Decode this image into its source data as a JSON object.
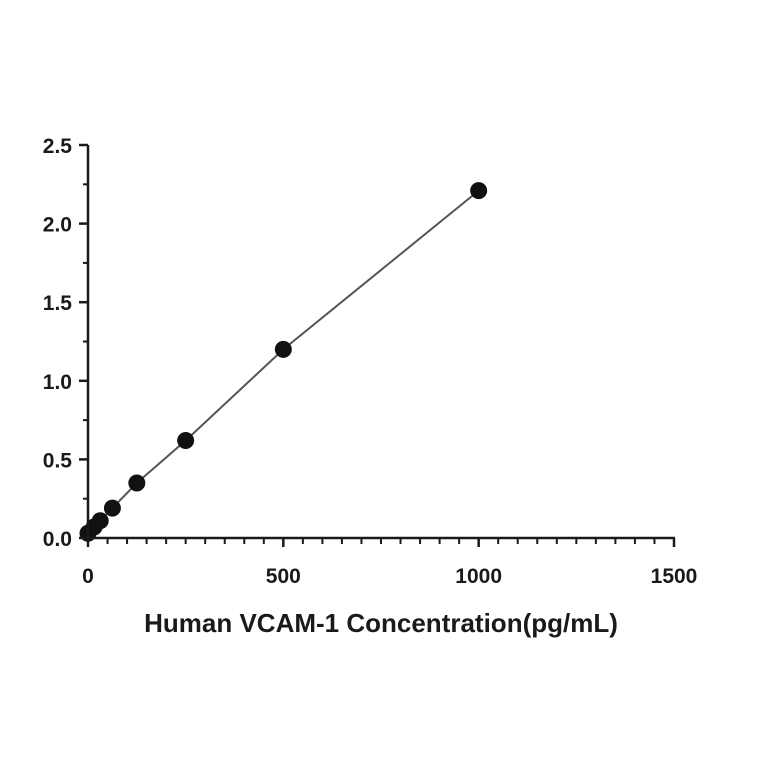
{
  "chart_data": {
    "type": "scatter",
    "title": "",
    "xlabel": "Human VCAM-1 Concentration(pg/mL)",
    "ylabel": "",
    "xlim": [
      0,
      1500
    ],
    "ylim": [
      0,
      2.5
    ],
    "xticks": [
      "0",
      "500",
      "1000",
      "1500"
    ],
    "yticks": [
      "0.0",
      "0.5",
      "1.0",
      "1.5",
      "2.0",
      "2.5"
    ],
    "grid": false,
    "legend": "none",
    "fit_line": true,
    "colors": {
      "points": "#111111",
      "line": "#555555",
      "axis": "#1a1a1a"
    },
    "series": [
      {
        "x": [
          0,
          15.6,
          31.25,
          62.5,
          125,
          250,
          500,
          1000
        ],
        "y": [
          0.03,
          0.07,
          0.11,
          0.19,
          0.35,
          0.62,
          1.2,
          2.21
        ]
      }
    ]
  }
}
